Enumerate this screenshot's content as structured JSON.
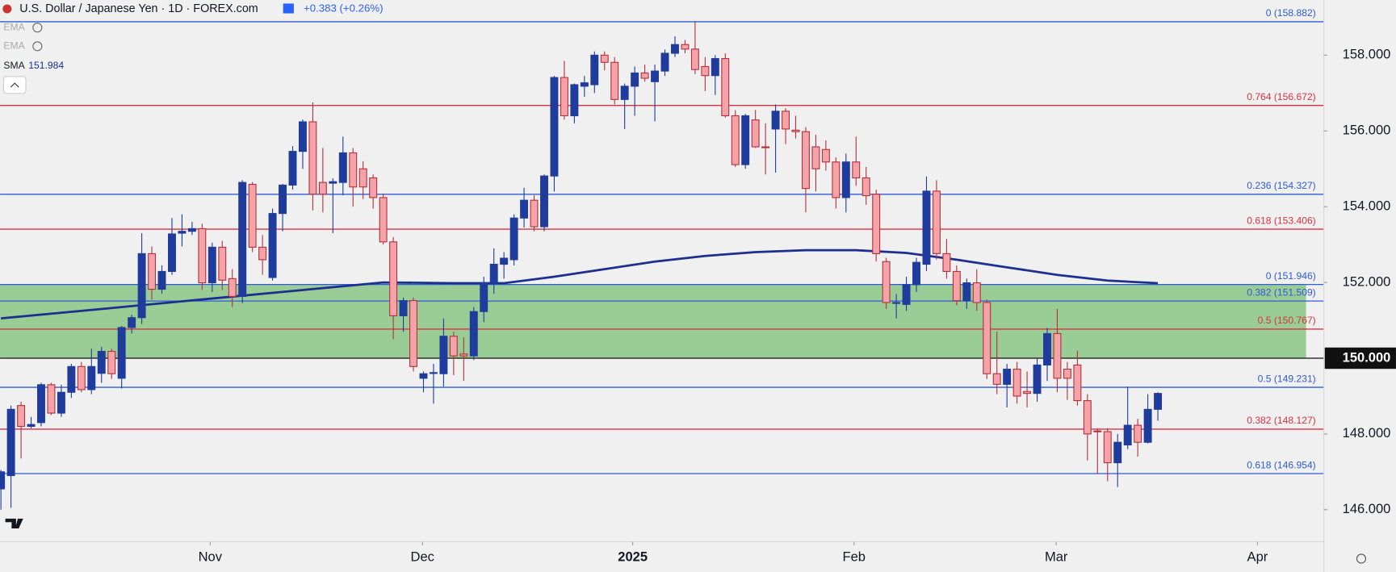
{
  "header": {
    "symbol": "U.S. Dollar / Japanese Yen · 1D · FOREX.com",
    "change": "+0.383 (+0.26%)",
    "indicators": [
      {
        "name": "EMA"
      },
      {
        "name": "EMA"
      },
      {
        "name": "SMA",
        "value": "151.984"
      }
    ]
  },
  "chart_data": {
    "type": "candlestick",
    "up_color": "#1f3c9c",
    "down_color": "#f4a3a9",
    "down_border": "#b3303c",
    "xlim": [
      -0.09,
      131.5
    ],
    "xticks": [
      {
        "value": 20.8,
        "label": "Nov"
      },
      {
        "value": 41.9,
        "label": "Dec"
      },
      {
        "value": 62.8,
        "label": "2025"
      },
      {
        "value": 84.8,
        "label": "Feb"
      },
      {
        "value": 104.9,
        "label": "Mar"
      },
      {
        "value": 124.9,
        "label": "Apr"
      }
    ],
    "ylim": [
      145.154,
      159.456
    ],
    "yticks": [
      {
        "value": 146,
        "label": "146.000"
      },
      {
        "value": 148,
        "label": "148.000"
      },
      {
        "value": 152,
        "label": "152.000"
      },
      {
        "value": 154,
        "label": "154.000"
      },
      {
        "value": 156,
        "label": "156.000"
      },
      {
        "value": 158,
        "label": "158.000"
      }
    ],
    "price_line": {
      "value": 150,
      "label": "150.000",
      "color": "#111111"
    },
    "zone": {
      "top": 151.946,
      "bottom": 150,
      "color": "#8fc98b"
    },
    "levels": [
      {
        "label": "0 (158.882)",
        "value": 158.882,
        "color": "#2f5ad8"
      },
      {
        "label": "0.764 (156.672)",
        "value": 156.672,
        "color": "#d9323f"
      },
      {
        "label": "0.236 (154.327)",
        "value": 154.327,
        "color": "#2f5ad8"
      },
      {
        "label": "0.618 (153.406)",
        "value": 153.406,
        "color": "#d9323f"
      },
      {
        "label": "0 (151.946)",
        "value": 151.946,
        "color": "#2f5ad8"
      },
      {
        "label": "0.382 (151.509)",
        "value": 151.509,
        "color": "#2f5ad8"
      },
      {
        "label": "0.5 (150.767)",
        "value": 150.767,
        "color": "#d9323f"
      },
      {
        "label": "0.5 (149.231)",
        "value": 149.231,
        "color": "#2f5ad8"
      },
      {
        "label": "0.382 (148.127)",
        "value": 148.127,
        "color": "#d9323f"
      },
      {
        "label": "0.618 (146.954)",
        "value": 146.954,
        "color": "#2f5ad8"
      }
    ],
    "sma": {
      "color": "#1c2f8f",
      "x": [
        0,
        10,
        20,
        30,
        38,
        45,
        50,
        55,
        60,
        65,
        70,
        75,
        80,
        85,
        90,
        95,
        100,
        105,
        110,
        115
      ],
      "values": [
        151.05,
        151.3,
        151.55,
        151.8,
        152.0,
        151.98,
        151.98,
        152.15,
        152.35,
        152.55,
        152.7,
        152.8,
        152.85,
        152.85,
        152.78,
        152.6,
        152.4,
        152.2,
        152.05,
        151.98
      ]
    },
    "candles": [
      [
        146.55,
        147.05,
        146.0,
        147.0
      ],
      [
        146.9,
        148.75,
        146.05,
        148.65
      ],
      [
        148.75,
        148.85,
        147.35,
        148.2
      ],
      [
        148.2,
        148.45,
        148.15,
        148.25
      ],
      [
        148.3,
        149.35,
        148.2,
        149.3
      ],
      [
        149.3,
        149.35,
        148.5,
        148.55
      ],
      [
        148.55,
        149.3,
        148.45,
        149.1
      ],
      [
        149.1,
        149.85,
        148.95,
        149.78
      ],
      [
        149.78,
        149.9,
        149.1,
        149.17
      ],
      [
        149.17,
        150.25,
        149.05,
        149.78
      ],
      [
        149.6,
        150.3,
        149.35,
        150.18
      ],
      [
        150.18,
        150.25,
        149.45,
        149.59
      ],
      [
        149.47,
        150.85,
        149.2,
        150.81
      ],
      [
        150.81,
        151.15,
        150.65,
        151.07
      ],
      [
        151.07,
        153.3,
        150.9,
        152.76
      ],
      [
        152.76,
        152.95,
        151.55,
        151.82
      ],
      [
        151.82,
        152.45,
        151.7,
        152.29
      ],
      [
        152.29,
        153.7,
        152.2,
        153.28
      ],
      [
        153.3,
        153.8,
        152.95,
        153.35
      ],
      [
        153.35,
        153.6,
        153.25,
        153.42
      ],
      [
        153.42,
        153.55,
        151.8,
        151.99
      ],
      [
        151.99,
        153.05,
        151.75,
        152.93
      ],
      [
        152.93,
        153.1,
        151.8,
        152.06
      ],
      [
        152.1,
        152.35,
        151.35,
        151.63
      ],
      [
        151.63,
        154.7,
        151.45,
        154.64
      ],
      [
        154.59,
        154.65,
        152.8,
        152.93
      ],
      [
        152.93,
        153.25,
        152.2,
        152.6
      ],
      [
        152.13,
        153.95,
        152.05,
        153.82
      ],
      [
        153.82,
        154.6,
        153.35,
        154.57
      ],
      [
        154.57,
        155.6,
        154.45,
        155.46
      ],
      [
        155.46,
        156.3,
        155.0,
        156.24
      ],
      [
        156.24,
        156.75,
        153.9,
        154.33
      ],
      [
        154.64,
        155.55,
        153.85,
        154.33
      ],
      [
        154.62,
        154.75,
        153.3,
        154.66
      ],
      [
        154.64,
        155.85,
        154.3,
        155.42
      ],
      [
        155.42,
        155.55,
        154.0,
        154.52
      ],
      [
        155.0,
        155.2,
        154.2,
        154.52
      ],
      [
        154.76,
        154.85,
        153.95,
        154.24
      ],
      [
        154.24,
        154.35,
        153.0,
        153.07
      ],
      [
        153.07,
        153.2,
        150.5,
        151.12
      ],
      [
        151.12,
        151.6,
        150.7,
        151.52
      ],
      [
        151.52,
        151.6,
        149.65,
        149.78
      ],
      [
        149.47,
        149.65,
        149.1,
        149.59
      ],
      [
        149.6,
        149.85,
        148.8,
        149.62
      ],
      [
        149.59,
        151.05,
        149.25,
        150.58
      ],
      [
        150.58,
        150.7,
        149.55,
        150.06
      ],
      [
        150.11,
        150.55,
        149.4,
        150.06
      ],
      [
        150.06,
        151.35,
        149.95,
        151.23
      ],
      [
        151.23,
        152.15,
        150.95,
        151.99
      ],
      [
        151.99,
        152.9,
        151.7,
        152.48
      ],
      [
        152.48,
        152.8,
        152.1,
        152.64
      ],
      [
        152.6,
        153.8,
        152.45,
        153.7
      ],
      [
        153.7,
        154.5,
        153.45,
        154.17
      ],
      [
        154.17,
        154.3,
        153.35,
        153.47
      ],
      [
        153.47,
        154.85,
        153.35,
        154.81
      ],
      [
        154.81,
        157.45,
        154.4,
        157.41
      ],
      [
        157.41,
        157.85,
        156.3,
        156.4
      ],
      [
        156.4,
        157.25,
        156.2,
        157.22
      ],
      [
        157.18,
        157.45,
        156.9,
        157.27
      ],
      [
        157.22,
        158.1,
        157.0,
        158.0
      ],
      [
        158.0,
        158.1,
        157.6,
        157.81
      ],
      [
        157.81,
        157.95,
        156.7,
        156.83
      ],
      [
        156.83,
        157.25,
        156.05,
        157.18
      ],
      [
        157.18,
        157.7,
        156.4,
        157.53
      ],
      [
        157.53,
        157.75,
        157.3,
        157.39
      ],
      [
        157.3,
        157.75,
        156.25,
        157.58
      ],
      [
        157.58,
        158.15,
        157.45,
        158.05
      ],
      [
        158.05,
        158.5,
        157.95,
        158.28
      ],
      [
        158.28,
        158.4,
        158.05,
        158.16
      ],
      [
        158.16,
        158.9,
        157.5,
        157.62
      ],
      [
        157.7,
        157.95,
        157.05,
        157.46
      ],
      [
        157.46,
        158.0,
        156.95,
        157.91
      ],
      [
        157.91,
        158.05,
        156.35,
        156.4
      ],
      [
        156.4,
        156.55,
        155.05,
        155.11
      ],
      [
        155.11,
        156.45,
        155.0,
        156.4
      ],
      [
        156.29,
        156.55,
        155.55,
        155.58
      ],
      [
        155.58,
        156.2,
        154.85,
        155.56
      ],
      [
        156.05,
        156.7,
        154.9,
        156.52
      ],
      [
        156.52,
        156.6,
        155.65,
        156.05
      ],
      [
        156.02,
        156.4,
        155.8,
        155.98
      ],
      [
        155.98,
        156.1,
        153.85,
        154.48
      ],
      [
        155.58,
        155.9,
        154.4,
        155.0
      ],
      [
        155.51,
        155.75,
        154.95,
        155.18
      ],
      [
        155.18,
        155.3,
        153.95,
        154.24
      ],
      [
        154.24,
        155.4,
        153.85,
        155.18
      ],
      [
        155.18,
        155.85,
        154.55,
        154.76
      ],
      [
        154.76,
        155.05,
        154.05,
        154.29
      ],
      [
        154.33,
        154.45,
        152.55,
        152.76
      ],
      [
        152.55,
        152.65,
        151.3,
        151.47
      ],
      [
        151.45,
        151.7,
        151.05,
        151.47
      ],
      [
        151.42,
        152.15,
        151.25,
        151.94
      ],
      [
        151.94,
        152.65,
        151.75,
        152.53
      ],
      [
        152.48,
        154.8,
        152.3,
        154.41
      ],
      [
        154.41,
        154.7,
        152.6,
        152.76
      ],
      [
        152.76,
        153.15,
        152.1,
        152.29
      ],
      [
        152.29,
        152.45,
        151.4,
        151.52
      ],
      [
        151.52,
        152.1,
        151.3,
        151.99
      ],
      [
        151.99,
        152.35,
        151.25,
        151.47
      ],
      [
        151.47,
        151.55,
        149.45,
        149.59
      ],
      [
        149.59,
        150.7,
        149.05,
        149.31
      ],
      [
        149.31,
        149.85,
        148.7,
        149.71
      ],
      [
        149.71,
        149.9,
        148.8,
        149.0
      ],
      [
        149.12,
        149.65,
        148.7,
        149.07
      ],
      [
        149.07,
        150.0,
        148.85,
        149.82
      ],
      [
        149.82,
        150.8,
        149.4,
        150.65
      ],
      [
        150.65,
        151.3,
        149.1,
        149.47
      ],
      [
        149.71,
        149.9,
        148.9,
        149.47
      ],
      [
        149.82,
        150.2,
        148.75,
        148.88
      ],
      [
        148.88,
        149.05,
        147.3,
        148.0
      ],
      [
        148.08,
        148.15,
        146.95,
        148.06
      ],
      [
        148.06,
        148.15,
        146.75,
        147.24
      ],
      [
        147.24,
        148.0,
        146.6,
        147.78
      ],
      [
        147.71,
        149.25,
        147.6,
        148.23
      ],
      [
        148.23,
        148.4,
        147.4,
        147.78
      ],
      [
        147.78,
        149.05,
        147.75,
        148.65
      ],
      [
        148.65,
        149.1,
        148.35,
        149.07
      ]
    ]
  }
}
